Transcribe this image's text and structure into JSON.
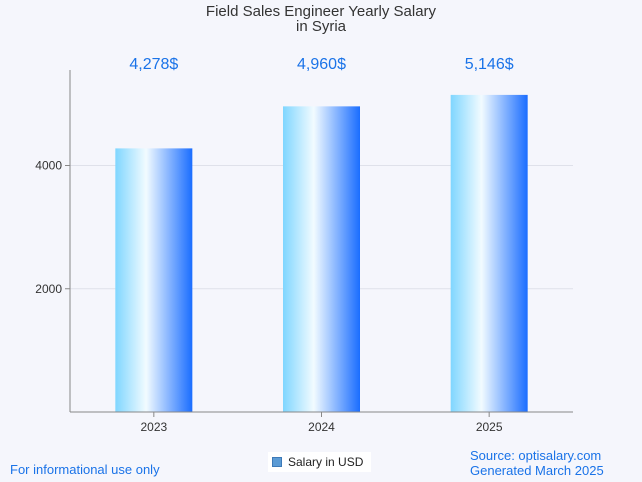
{
  "chart_data": {
    "type": "bar",
    "title": "Field Sales Engineer Yearly Salary",
    "subtitle": "in Syria",
    "categories": [
      "2023",
      "2024",
      "2025"
    ],
    "series": [
      {
        "name": "Salary in USD",
        "values": [
          4278,
          4960,
          5146
        ]
      }
    ],
    "data_labels": [
      "4,278$",
      "4,960$",
      "5,146$"
    ],
    "y_ticks": [
      2000,
      4000
    ],
    "ylim": [
      0,
      5550
    ],
    "grid": true,
    "legend_position": "bottom-center"
  },
  "footer": {
    "note": "For informational use only",
    "source": "Source: optisalary.com",
    "generated": "Generated March 2025"
  },
  "colors": {
    "bar_light": "#f2fbff",
    "bar_mid": "#7fd6ff",
    "bar_dark": "#1a6dff",
    "label_blue": "#1a73e8"
  }
}
